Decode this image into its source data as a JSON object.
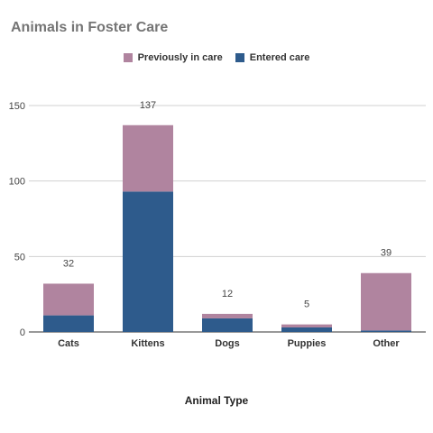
{
  "chart_data": {
    "type": "bar",
    "stacked": true,
    "title": "Animals in Foster Care",
    "xlabel": "Animal Type",
    "ylabel": "",
    "ylim": [
      0,
      150
    ],
    "yticks": [
      0,
      50,
      100,
      150
    ],
    "grid": true,
    "legend_position": "top",
    "categories": [
      "Cats",
      "Kittens",
      "Dogs",
      "Puppies",
      "Other"
    ],
    "series": [
      {
        "name": "Entered care",
        "color": "#2e5b8c",
        "values": [
          11,
          93,
          9,
          3,
          1
        ]
      },
      {
        "name": "Previously in care",
        "color": "#b0849f",
        "values": [
          21,
          44,
          3,
          2,
          38
        ]
      }
    ],
    "totals": [
      32,
      137,
      12,
      5,
      39
    ]
  },
  "legend": [
    {
      "label": "Previously in care",
      "color": "#b0849f"
    },
    {
      "label": "Entered care",
      "color": "#2e5b8c"
    }
  ]
}
